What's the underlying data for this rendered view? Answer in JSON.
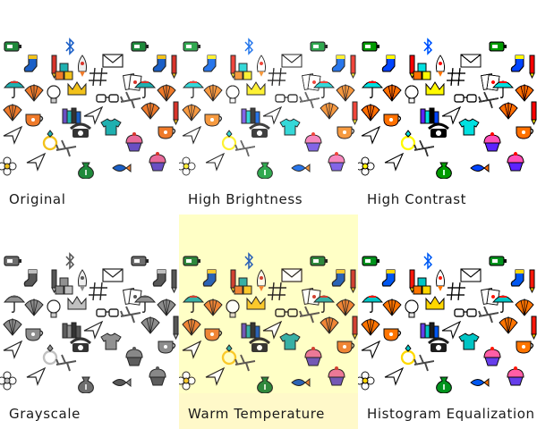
{
  "panels": [
    {
      "variant": "original",
      "caption": "Original"
    },
    {
      "variant": "bright",
      "caption": "High Brightness"
    },
    {
      "variant": "contrast",
      "caption": "High Contrast"
    },
    {
      "variant": "gray",
      "caption": "Grayscale"
    },
    {
      "variant": "warm",
      "caption": "Warm Temperature"
    },
    {
      "variant": "hist",
      "caption": "Histogram Equalization"
    }
  ],
  "pattern_icons": [
    "battery-icon",
    "bluetooth-icon",
    "sock-icon",
    "pencil-icon",
    "blocks-icon",
    "rocket-icon",
    "envelope-icon",
    "playing-cards-icon",
    "umbrella-icon",
    "shell-icon",
    "hashtag-icon",
    "eyeglasses-icon",
    "crown-icon",
    "lightbulb-icon",
    "books-icon",
    "telephone-icon",
    "teacup-icon",
    "tshirt-icon",
    "airplane-icon",
    "flower-icon",
    "moneybag-icon",
    "cupcake-icon",
    "fish-icon",
    "ring-icon",
    "paper-plane-icon"
  ],
  "colors": {
    "green": "#1f8a3b",
    "blue": "#1a5fc7",
    "yellow": "#f2c21b",
    "orange": "#ef7a2a",
    "red": "#d8342b",
    "teal": "#1fb0b0",
    "purple": "#6a4fc3",
    "pink": "#e86a9a",
    "dark": "#333333"
  }
}
